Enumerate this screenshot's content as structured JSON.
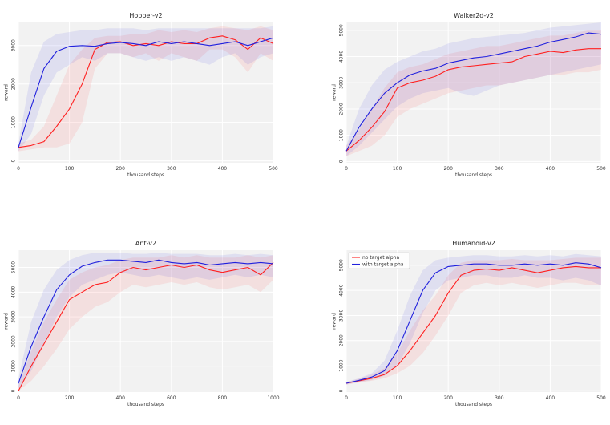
{
  "colors": {
    "no_target": "#ff2020",
    "with_target": "#2020dd",
    "background": "#f2f2f2",
    "grid": "#ffffff"
  },
  "chart_data": [
    {
      "type": "line",
      "title": "Hopper-v2",
      "xlabel": "thousand steps",
      "ylabel": "reward",
      "xlim": [
        0,
        500
      ],
      "ylim": [
        -50,
        3600
      ],
      "xticks": [
        0,
        100,
        200,
        300,
        400,
        500
      ],
      "yticks": [
        0,
        1000,
        2000,
        3000
      ],
      "legend": "none",
      "series": [
        {
          "name": "no target alpha",
          "color": "#ff2020",
          "x": [
            0,
            25,
            50,
            75,
            100,
            125,
            150,
            175,
            200,
            225,
            250,
            275,
            300,
            325,
            350,
            375,
            400,
            425,
            450,
            475,
            500
          ],
          "y": [
            350,
            400,
            500,
            900,
            1350,
            2000,
            2900,
            3080,
            3100,
            3000,
            3050,
            3000,
            3100,
            3050,
            3050,
            3200,
            3250,
            3150,
            2900,
            3200,
            3050
          ],
          "lower": [
            250,
            300,
            350,
            350,
            450,
            1000,
            2400,
            2800,
            2800,
            2700,
            2800,
            2600,
            2800,
            2700,
            2600,
            2900,
            2900,
            2700,
            2300,
            2800,
            2600
          ],
          "upper": [
            450,
            550,
            900,
            1700,
            2500,
            2900,
            3200,
            3250,
            3250,
            3300,
            3300,
            3400,
            3350,
            3400,
            3350,
            3450,
            3500,
            3450,
            3400,
            3500,
            3400
          ]
        },
        {
          "name": "with target alpha",
          "color": "#2020dd",
          "x": [
            0,
            25,
            50,
            75,
            100,
            125,
            150,
            175,
            200,
            225,
            250,
            275,
            300,
            325,
            350,
            375,
            400,
            425,
            450,
            475,
            500
          ],
          "y": [
            350,
            1400,
            2400,
            2850,
            2980,
            3000,
            2980,
            3050,
            3080,
            3050,
            3000,
            3100,
            3050,
            3100,
            3050,
            3000,
            3050,
            3100,
            3000,
            3100,
            3200
          ],
          "lower": [
            250,
            700,
            1700,
            2300,
            2500,
            2700,
            2600,
            2800,
            2800,
            2700,
            2600,
            2700,
            2600,
            2700,
            2600,
            2500,
            2700,
            2800,
            2500,
            2700,
            2800
          ],
          "upper": [
            450,
            2300,
            3100,
            3300,
            3350,
            3400,
            3400,
            3450,
            3450,
            3450,
            3400,
            3450,
            3450,
            3450,
            3450,
            3450,
            3450,
            3450,
            3450,
            3450,
            3500
          ]
        }
      ]
    },
    {
      "type": "line",
      "title": "Walker2d-v2",
      "xlabel": "thousand steps",
      "ylabel": "reward",
      "xlim": [
        0,
        500
      ],
      "ylim": [
        -50,
        5300
      ],
      "xticks": [
        0,
        100,
        200,
        300,
        400,
        500
      ],
      "yticks": [
        0,
        1000,
        2000,
        3000,
        4000,
        5000
      ],
      "legend": "none",
      "series": [
        {
          "name": "no target alpha",
          "color": "#ff2020",
          "x": [
            0,
            25,
            50,
            75,
            100,
            125,
            150,
            175,
            200,
            225,
            250,
            275,
            300,
            325,
            350,
            375,
            400,
            425,
            450,
            475,
            500
          ],
          "y": [
            400,
            800,
            1300,
            1900,
            2800,
            3000,
            3100,
            3250,
            3500,
            3600,
            3650,
            3700,
            3750,
            3800,
            4000,
            4100,
            4200,
            4150,
            4250,
            4300,
            4300
          ],
          "lower": [
            200,
            400,
            600,
            1000,
            1700,
            2000,
            2200,
            2400,
            2600,
            2700,
            2800,
            2900,
            2900,
            3000,
            3100,
            3200,
            3300,
            3300,
            3400,
            3400,
            3500
          ],
          "upper": [
            600,
            1200,
            2000,
            2800,
            3400,
            3600,
            3700,
            3900,
            4100,
            4200,
            4300,
            4400,
            4400,
            4500,
            4600,
            4700,
            4800,
            4800,
            4900,
            5000,
            5000
          ]
        },
        {
          "name": "with target alpha",
          "color": "#2020dd",
          "x": [
            0,
            25,
            50,
            75,
            100,
            125,
            150,
            175,
            200,
            225,
            250,
            275,
            300,
            325,
            350,
            375,
            400,
            425,
            450,
            475,
            500
          ],
          "y": [
            400,
            1300,
            2000,
            2600,
            3000,
            3300,
            3450,
            3550,
            3750,
            3850,
            3950,
            4000,
            4100,
            4200,
            4300,
            4400,
            4550,
            4650,
            4750,
            4900,
            4850
          ],
          "lower": [
            200,
            600,
            1100,
            1600,
            2100,
            2400,
            2600,
            2700,
            2800,
            2600,
            2500,
            2700,
            2900,
            3000,
            3100,
            3200,
            3300,
            3400,
            3500,
            3600,
            3700
          ],
          "upper": [
            600,
            2000,
            2900,
            3500,
            3800,
            4000,
            4200,
            4300,
            4500,
            4600,
            4700,
            4750,
            4800,
            4850,
            4900,
            5000,
            5100,
            5150,
            5200,
            5250,
            5300
          ]
        }
      ]
    },
    {
      "type": "line",
      "title": "Ant-v2",
      "xlabel": "thousand steps",
      "ylabel": "reward",
      "xlim": [
        0,
        1000
      ],
      "ylim": [
        -50,
        5700
      ],
      "xticks": [
        0,
        200,
        400,
        600,
        800,
        1000
      ],
      "yticks": [
        0,
        1000,
        2000,
        3000,
        4000,
        5000
      ],
      "legend": "none",
      "series": [
        {
          "name": "no target alpha",
          "color": "#ff2020",
          "x": [
            0,
            50,
            100,
            150,
            200,
            250,
            300,
            350,
            400,
            450,
            500,
            550,
            600,
            650,
            700,
            750,
            800,
            850,
            900,
            950,
            1000
          ],
          "y": [
            0,
            1000,
            1900,
            2800,
            3700,
            4000,
            4300,
            4400,
            4800,
            5000,
            4900,
            5000,
            5100,
            5000,
            5100,
            4900,
            4800,
            4900,
            5000,
            4700,
            5200
          ],
          "lower": [
            0,
            400,
            1000,
            1700,
            2500,
            3000,
            3400,
            3600,
            4000,
            4300,
            4200,
            4300,
            4400,
            4300,
            4400,
            4200,
            4100,
            4200,
            4300,
            4000,
            4500
          ],
          "upper": [
            200,
            1600,
            2800,
            3700,
            4500,
            4800,
            5000,
            5100,
            5300,
            5400,
            5400,
            5400,
            5500,
            5400,
            5500,
            5400,
            5400,
            5400,
            5500,
            5400,
            5500
          ]
        },
        {
          "name": "with target alpha",
          "color": "#2020dd",
          "x": [
            0,
            50,
            100,
            150,
            200,
            250,
            300,
            350,
            400,
            450,
            500,
            550,
            600,
            650,
            700,
            750,
            800,
            850,
            900,
            950,
            1000
          ],
          "y": [
            300,
            1800,
            3000,
            4100,
            4700,
            5050,
            5200,
            5300,
            5300,
            5250,
            5200,
            5300,
            5200,
            5150,
            5200,
            5100,
            5150,
            5200,
            5150,
            5200,
            5150
          ],
          "lower": [
            100,
            800,
            1900,
            3000,
            3800,
            4300,
            4500,
            4700,
            4800,
            4700,
            4600,
            4700,
            4600,
            4500,
            4600,
            4500,
            4600,
            4700,
            4600,
            4700,
            4600
          ],
          "upper": [
            500,
            2800,
            4100,
            4900,
            5300,
            5500,
            5600,
            5600,
            5600,
            5550,
            5550,
            5600,
            5550,
            5550,
            5550,
            5500,
            5500,
            5550,
            5500,
            5550,
            5500
          ]
        }
      ]
    },
    {
      "type": "line",
      "title": "Humanoid-v2",
      "xlabel": "thousand steps",
      "ylabel": "reward",
      "xlim": [
        0,
        500
      ],
      "ylim": [
        -50,
        5600
      ],
      "xticks": [
        0,
        100,
        200,
        300,
        400,
        500
      ],
      "yticks": [
        0,
        1000,
        2000,
        3000,
        4000,
        5000
      ],
      "legend": "top-left",
      "series": [
        {
          "name": "no target alpha",
          "color": "#ff2020",
          "x": [
            0,
            25,
            50,
            75,
            100,
            125,
            150,
            175,
            200,
            225,
            250,
            275,
            300,
            325,
            350,
            375,
            400,
            425,
            450,
            475,
            500
          ],
          "y": [
            300,
            400,
            500,
            650,
            1000,
            1600,
            2300,
            3000,
            3900,
            4600,
            4800,
            4850,
            4800,
            4900,
            4800,
            4700,
            4800,
            4900,
            4950,
            4900,
            4900
          ],
          "lower": [
            250,
            330,
            400,
            500,
            700,
            1000,
            1500,
            2200,
            3000,
            3900,
            4200,
            4300,
            4200,
            4300,
            4200,
            4100,
            4200,
            4300,
            4300,
            4200,
            4200
          ],
          "upper": [
            350,
            480,
            650,
            900,
            1500,
            2400,
            3200,
            3800,
            4600,
            5100,
            5200,
            5200,
            5200,
            5250,
            5200,
            5200,
            5200,
            5250,
            5300,
            5300,
            5300
          ]
        },
        {
          "name": "with target alpha",
          "color": "#2020dd",
          "x": [
            0,
            25,
            50,
            75,
            100,
            125,
            150,
            175,
            200,
            225,
            250,
            275,
            300,
            325,
            350,
            375,
            400,
            425,
            450,
            475,
            500
          ],
          "y": [
            300,
            420,
            550,
            800,
            1600,
            2800,
            4000,
            4700,
            4950,
            5000,
            5050,
            5050,
            5000,
            5000,
            5050,
            5000,
            5050,
            5000,
            5100,
            5050,
            4900
          ],
          "lower": [
            250,
            350,
            430,
            600,
            1000,
            1900,
            3100,
            4000,
            4400,
            4500,
            4600,
            4600,
            4500,
            4500,
            4600,
            4500,
            4500,
            4400,
            4500,
            4400,
            4200
          ],
          "upper": [
            350,
            500,
            700,
            1200,
            2400,
            3800,
            4800,
            5200,
            5300,
            5350,
            5400,
            5400,
            5350,
            5350,
            5400,
            5350,
            5400,
            5350,
            5450,
            5400,
            5350
          ]
        }
      ]
    }
  ]
}
